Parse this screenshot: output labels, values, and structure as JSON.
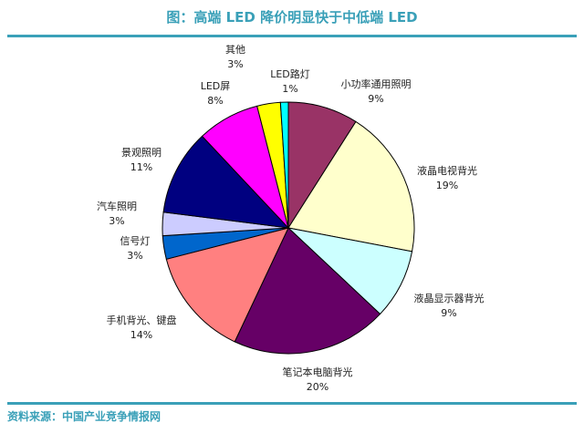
{
  "title": "图：高端 LED 降价明显快于中低端 LED",
  "source": "资料来源：中国产业竞争情报网",
  "chart_data": {
    "type": "pie",
    "start_angle_deg": 0,
    "direction": "clockwise",
    "slices": [
      {
        "label": "小功率通用照明",
        "value": 9,
        "pct_text": "9%",
        "color": "#993366"
      },
      {
        "label": "液晶电视背光",
        "value": 19,
        "pct_text": "19%",
        "color": "#FFFFCC"
      },
      {
        "label": "液晶显示器背光",
        "value": 9,
        "pct_text": "9%",
        "color": "#CCFFFF"
      },
      {
        "label": "笔记本电脑背光",
        "value": 20,
        "pct_text": "20%",
        "color": "#660066"
      },
      {
        "label": "手机背光、键盘",
        "value": 14,
        "pct_text": "14%",
        "color": "#FF8080"
      },
      {
        "label": "信号灯",
        "value": 3,
        "pct_text": "3%",
        "color": "#0066CC"
      },
      {
        "label": "汽车照明",
        "value": 3,
        "pct_text": "3%",
        "color": "#CCCCFF"
      },
      {
        "label": "景观照明",
        "value": 11,
        "pct_text": "11%",
        "color": "#000080"
      },
      {
        "label": "LED屏",
        "value": 8,
        "pct_text": "8%",
        "color": "#FF00FF"
      },
      {
        "label": "其他",
        "value": 3,
        "pct_text": "3%",
        "color": "#FFFF00"
      },
      {
        "label": "LED路灯",
        "value": 1,
        "pct_text": "1%",
        "color": "#00FFFF"
      }
    ]
  }
}
